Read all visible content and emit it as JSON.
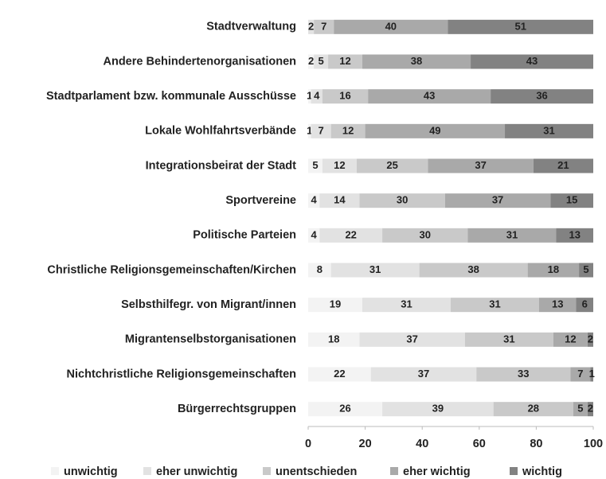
{
  "chart_data": {
    "type": "stacked_bar_horizontal",
    "categories": [
      "Stadtverwaltung",
      "Andere Behindertenorganisationen",
      "Stadtparlament bzw. kommunale Ausschüsse",
      "Lokale Wohlfahrtsverbände",
      "Integrationsbeirat der Stadt",
      "Sportvereine",
      "Politische Parteien",
      "Christliche Religionsgemeinschaften/Kirchen",
      "Selbsthilfegr. von Migrant/innen",
      "Migrantenselbstorganisationen",
      "Nichtchristliche Religionsgemeinschaften",
      "Bürgerrechtsgruppen"
    ],
    "series": [
      {
        "name": "unwichtig",
        "color": "#f3f3f3",
        "values": [
          0,
          2,
          1,
          1,
          5,
          4,
          4,
          8,
          19,
          18,
          22,
          26
        ]
      },
      {
        "name": "eher unwichtig",
        "color": "#e2e2e2",
        "values": [
          2,
          5,
          4,
          7,
          12,
          14,
          22,
          31,
          31,
          37,
          37,
          39
        ]
      },
      {
        "name": "unentschieden",
        "color": "#c9c9c9",
        "values": [
          7,
          12,
          16,
          12,
          25,
          30,
          30,
          38,
          31,
          31,
          33,
          28
        ]
      },
      {
        "name": "eher wichtig",
        "color": "#a9a9a9",
        "values": [
          40,
          38,
          43,
          49,
          37,
          37,
          31,
          18,
          13,
          12,
          7,
          5
        ]
      },
      {
        "name": "wichtig",
        "color": "#828282",
        "values": [
          51,
          43,
          36,
          31,
          21,
          15,
          13,
          5,
          6,
          2,
          1,
          2
        ]
      }
    ],
    "xlim": [
      0,
      100
    ],
    "xticks": [
      0,
      20,
      40,
      60,
      80,
      100
    ],
    "legend": "bottom"
  }
}
